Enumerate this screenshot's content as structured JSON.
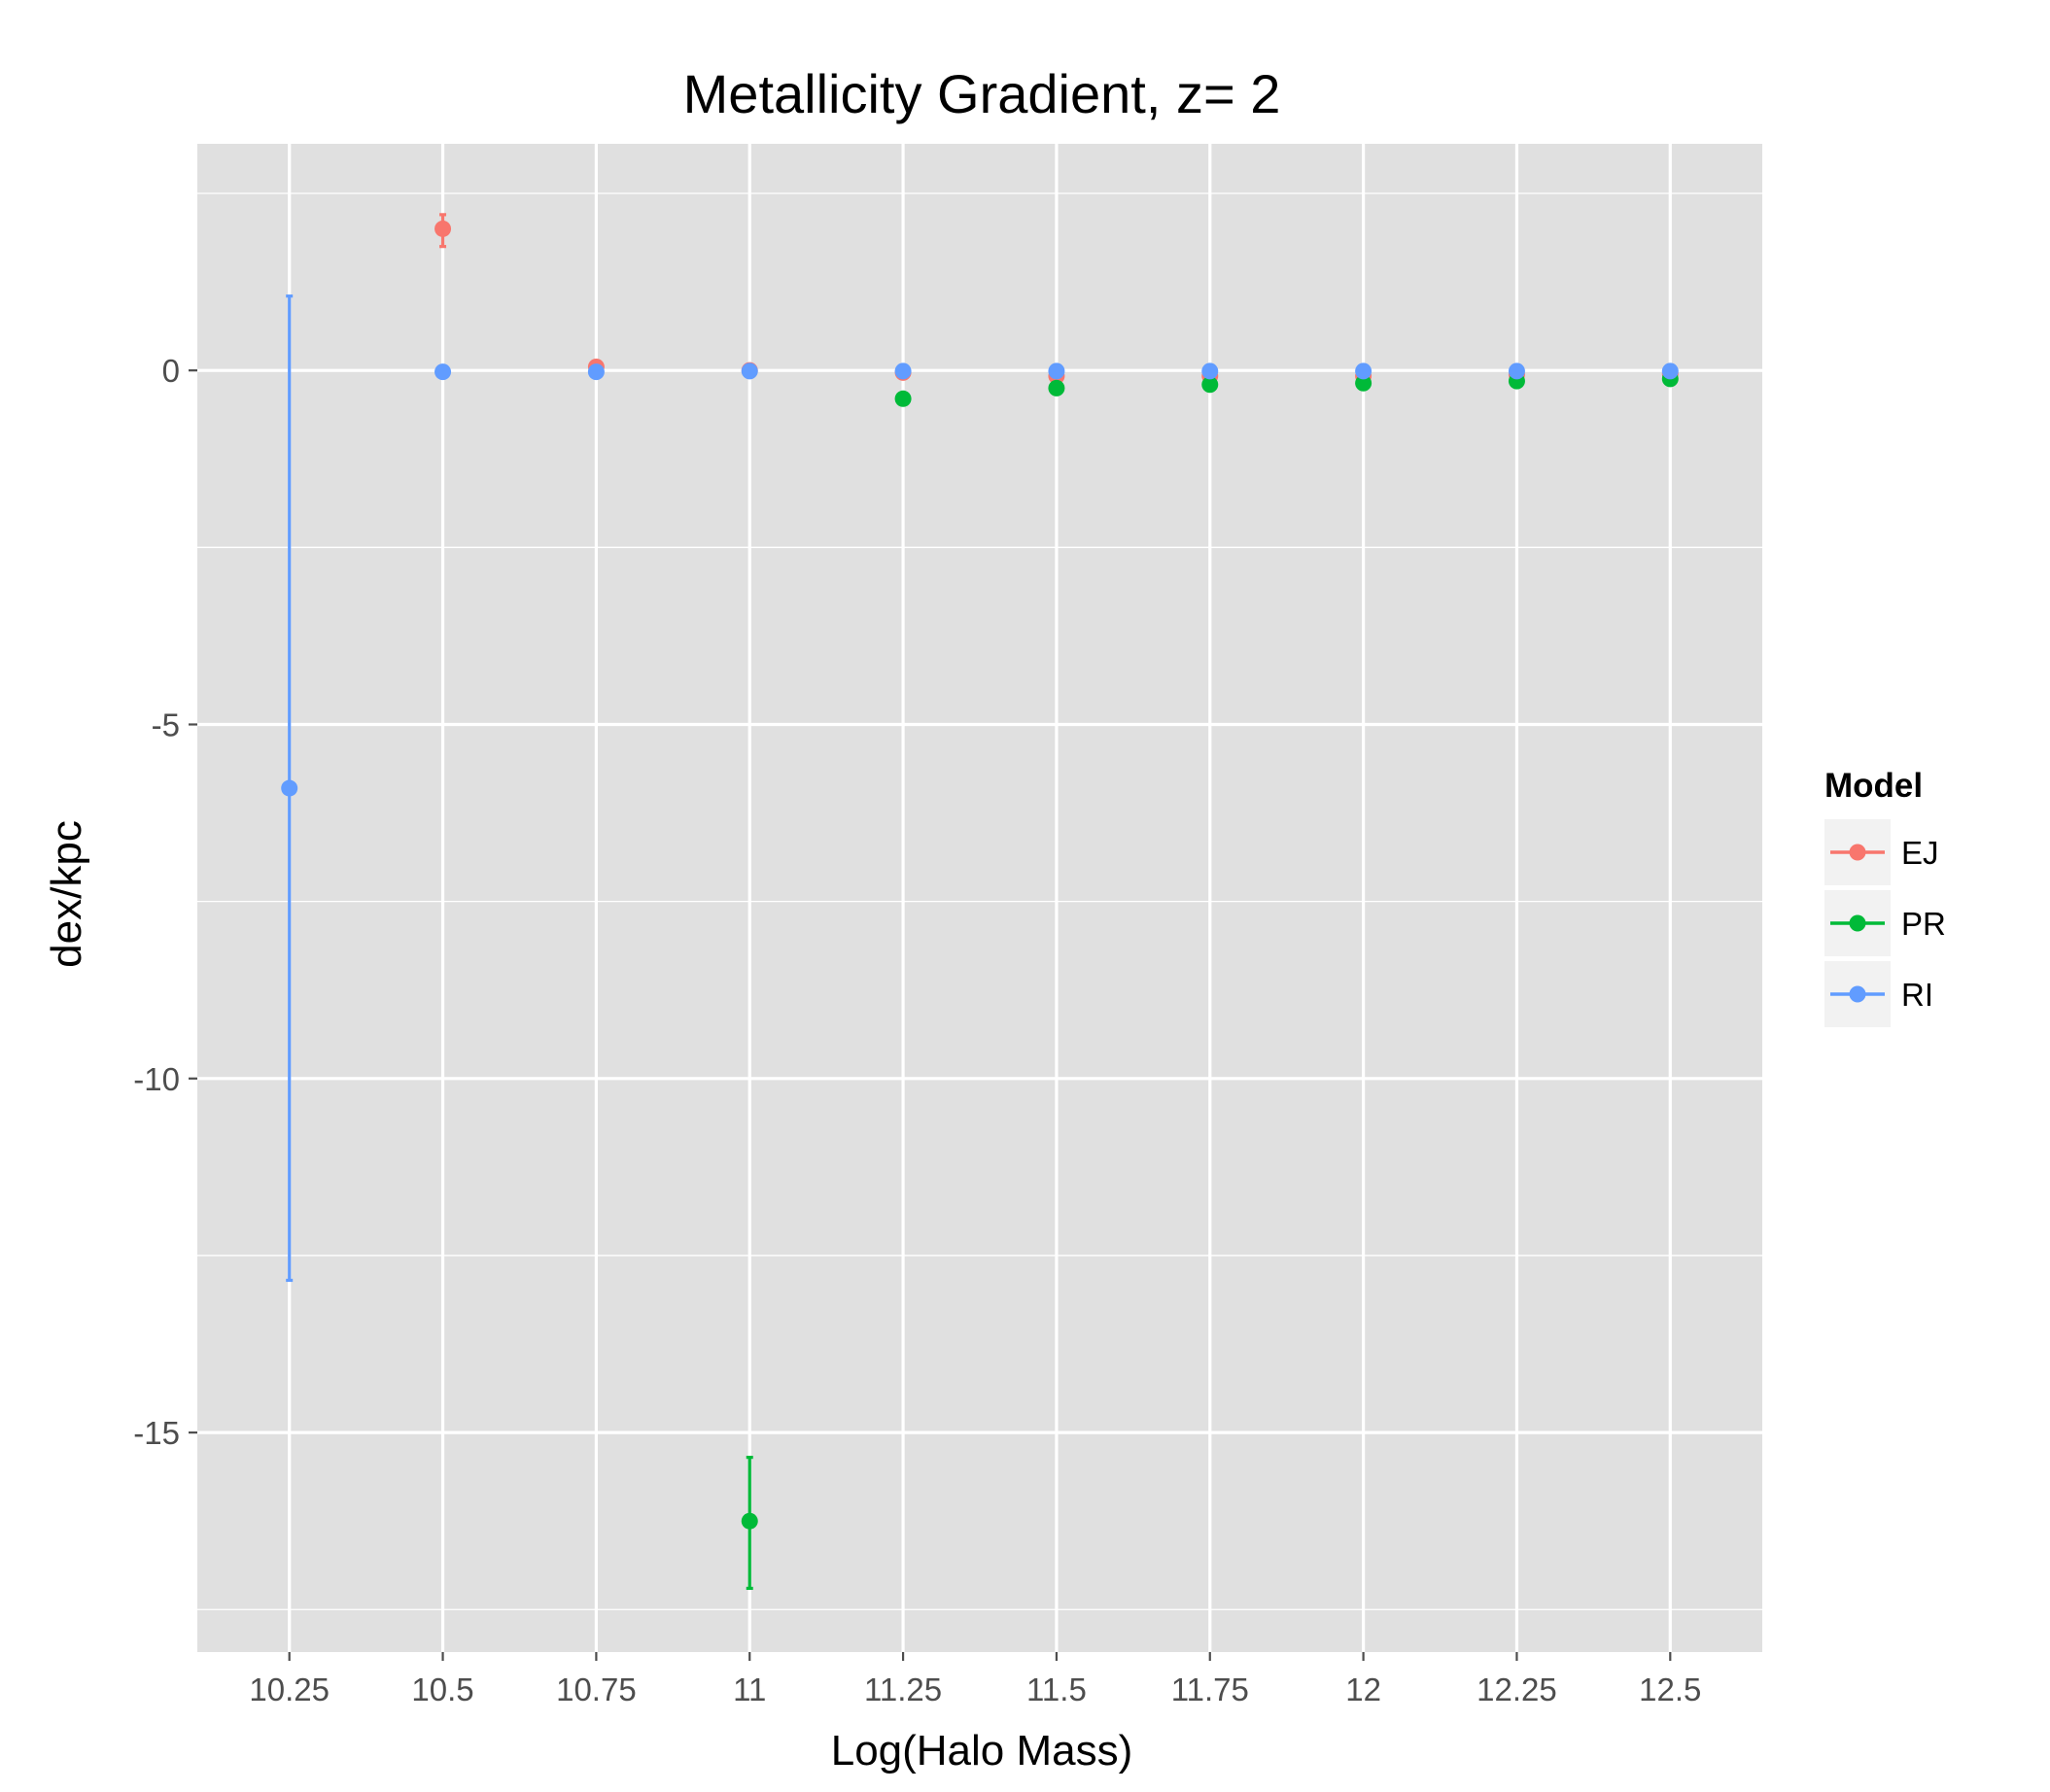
{
  "chart_data": {
    "type": "scatter",
    "title": "Metallicity Gradient, z= 2",
    "xlabel": "Log(Halo Mass)",
    "ylabel": "dex/kpc",
    "x_ticks": [
      "10.25",
      "10.5",
      "10.75",
      "11",
      "11.25",
      "11.5",
      "11.75",
      "12",
      "12.25",
      "12.5"
    ],
    "y_ticks": [
      "-15",
      "-10",
      "-5",
      "0"
    ],
    "xlim": [
      10.1,
      12.65
    ],
    "ylim": [
      -18.1,
      3.2
    ],
    "grid": true,
    "legend": {
      "title": "Model",
      "position": "right",
      "entries": [
        "EJ",
        "PR",
        "RI"
      ]
    },
    "colors": {
      "EJ": "#F8766D",
      "PR": "#00BA38",
      "RI": "#619CFF",
      "panel": "#E0E0E0",
      "grid": "#FFFFFF"
    },
    "series": [
      {
        "name": "EJ",
        "points": [
          {
            "x": 10.5,
            "y": 2.0,
            "ymin": 1.75,
            "ymax": 2.2
          },
          {
            "x": 10.75,
            "y": 0.05
          },
          {
            "x": 11.0,
            "y": 0.0
          },
          {
            "x": 11.25,
            "y": -0.03
          },
          {
            "x": 11.5,
            "y": -0.08
          },
          {
            "x": 11.75,
            "y": -0.08
          },
          {
            "x": 12.0,
            "y": -0.08
          },
          {
            "x": 12.25,
            "y": -0.06
          },
          {
            "x": 12.5,
            "y": -0.05
          }
        ]
      },
      {
        "name": "PR",
        "points": [
          {
            "x": 11.0,
            "y": -16.25,
            "ymin": -17.2,
            "ymax": -15.35
          },
          {
            "x": 11.25,
            "y": -0.4
          },
          {
            "x": 11.5,
            "y": -0.25
          },
          {
            "x": 11.75,
            "y": -0.2
          },
          {
            "x": 12.0,
            "y": -0.18
          },
          {
            "x": 12.25,
            "y": -0.15
          },
          {
            "x": 12.5,
            "y": -0.12
          }
        ]
      },
      {
        "name": "RI",
        "points": [
          {
            "x": 10.25,
            "y": -5.9,
            "ymin": -12.85,
            "ymax": 1.05
          },
          {
            "x": 10.5,
            "y": -0.02
          },
          {
            "x": 10.75,
            "y": -0.02
          },
          {
            "x": 11.0,
            "y": -0.01
          },
          {
            "x": 11.25,
            "y": -0.01
          },
          {
            "x": 11.5,
            "y": -0.01
          },
          {
            "x": 11.75,
            "y": -0.01
          },
          {
            "x": 12.0,
            "y": -0.01
          },
          {
            "x": 12.25,
            "y": -0.01
          },
          {
            "x": 12.5,
            "y": -0.01
          }
        ]
      }
    ]
  }
}
